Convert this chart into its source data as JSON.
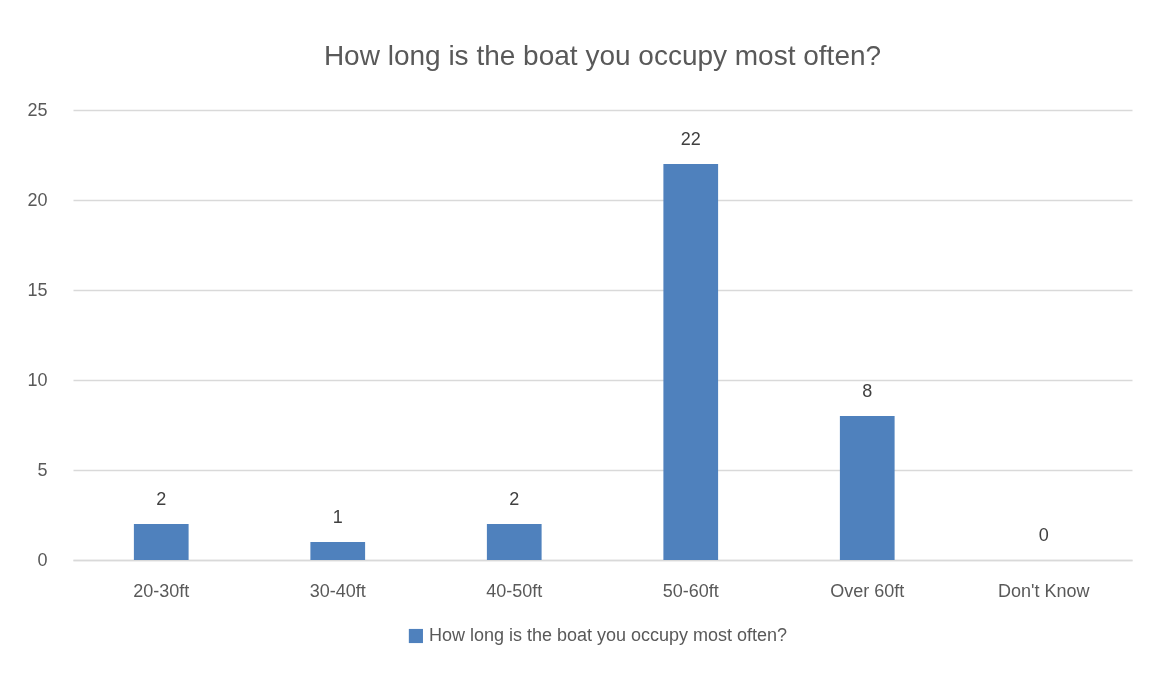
{
  "chart_data": {
    "type": "bar",
    "title": "How long is the boat you occupy most often?",
    "categories": [
      "20-30ft",
      "30-40ft",
      "40-50ft",
      "50-60ft",
      "Over 60ft",
      "Don't Know"
    ],
    "series": [
      {
        "name": "How long is the boat you occupy most often?",
        "color": "#4f81bd",
        "values": [
          2,
          1,
          2,
          22,
          8,
          0
        ]
      }
    ],
    "ylim": [
      0,
      25
    ],
    "yticks": [
      0,
      5,
      10,
      15,
      20,
      25
    ],
    "grid": "y",
    "legend": "bottom",
    "data_labels": true
  }
}
